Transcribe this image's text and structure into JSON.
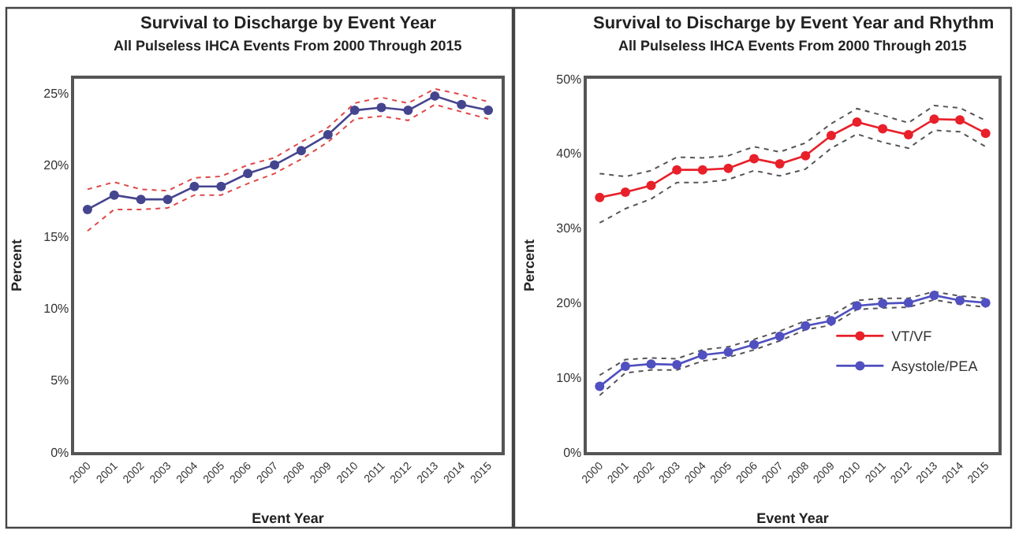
{
  "chart_data": [
    {
      "type": "line",
      "title": "Survival to Discharge by Event Year",
      "subtitle": "All Pulseless IHCA Events From 2000 Through 2015",
      "xlabel": "Event Year",
      "ylabel": "Percent",
      "categories": [
        "2000",
        "2001",
        "2002",
        "2003",
        "2004",
        "2005",
        "2006",
        "2007",
        "2008",
        "2009",
        "2010",
        "2011",
        "2012",
        "2013",
        "2014",
        "2015"
      ],
      "series": [
        {
          "color": "#e04848",
          "line_style": "dotted",
          "marker": "none",
          "values": [
            15.4,
            16.9,
            16.9,
            17.0,
            17.9,
            17.9,
            18.7,
            19.4,
            20.4,
            21.6,
            23.2,
            23.4,
            23.1,
            24.2,
            23.7,
            23.2
          ]
        },
        {
          "color": "#e04848",
          "line_style": "dotted",
          "marker": "none",
          "values": [
            18.3,
            18.8,
            18.3,
            18.2,
            19.1,
            19.2,
            20.0,
            20.5,
            21.6,
            22.6,
            24.3,
            24.7,
            24.3,
            25.3,
            24.9,
            24.4
          ]
        },
        {
          "color": "#45458f",
          "values": [
            16.9,
            17.9,
            17.6,
            17.6,
            18.5,
            18.5,
            19.4,
            20.0,
            21.0,
            22.1,
            23.8,
            24.0,
            23.8,
            24.8,
            24.2,
            23.8
          ]
        }
      ],
      "ylim": [
        0,
        26
      ],
      "yticks": [
        {
          "value": 0,
          "label": "0%"
        },
        {
          "value": 5,
          "label": "5%"
        },
        {
          "value": 10,
          "label": "10%"
        },
        {
          "value": 15,
          "label": "15%"
        },
        {
          "value": 20,
          "label": "20%"
        },
        {
          "value": 25,
          "label": "25%"
        }
      ],
      "marker": "circle",
      "line_style": "solid",
      "legend": false
    },
    {
      "type": "line",
      "title": "Survival to Discharge by Event Year and Rhythm",
      "subtitle": "All Pulseless IHCA Events From 2000 Through 2015",
      "xlabel": "Event Year",
      "ylabel": "Percent",
      "categories": [
        "2000",
        "2001",
        "2002",
        "2003",
        "2004",
        "2005",
        "2006",
        "2007",
        "2008",
        "2009",
        "2010",
        "2011",
        "2012",
        "2013",
        "2014",
        "2015"
      ],
      "series": [
        {
          "color": "#555555",
          "line_style": "dotted",
          "marker": "none",
          "values": [
            30.7,
            32.6,
            33.9,
            36.1,
            36.1,
            36.5,
            37.7,
            37.0,
            37.9,
            40.7,
            42.6,
            41.5,
            40.7,
            43.1,
            42.9,
            40.9
          ]
        },
        {
          "color": "#555555",
          "line_style": "dotted",
          "marker": "none",
          "values": [
            37.3,
            36.9,
            37.7,
            39.5,
            39.4,
            39.7,
            40.9,
            40.2,
            41.4,
            44.0,
            46.0,
            45.1,
            44.1,
            46.4,
            46.1,
            44.4
          ]
        },
        {
          "color": "#555555",
          "line_style": "dotted",
          "marker": "none",
          "values": [
            7.6,
            10.6,
            11.0,
            11.0,
            12.2,
            12.7,
            13.7,
            14.9,
            16.4,
            17.0,
            19.1,
            19.3,
            19.4,
            20.4,
            19.8,
            19.4
          ]
        },
        {
          "color": "#555555",
          "line_style": "dotted",
          "marker": "none",
          "values": [
            10.3,
            12.4,
            12.6,
            12.5,
            13.7,
            14.1,
            15.1,
            16.2,
            17.6,
            18.3,
            20.3,
            20.6,
            20.6,
            21.5,
            20.9,
            20.6
          ]
        },
        {
          "name": "VT/VF",
          "color": "#e8202a",
          "values": [
            34.1,
            34.8,
            35.7,
            37.8,
            37.8,
            38.0,
            39.3,
            38.6,
            39.7,
            42.4,
            44.2,
            43.3,
            42.5,
            44.6,
            44.5,
            42.7
          ]
        },
        {
          "name": "Asystole/PEA",
          "color": "#5050c0",
          "values": [
            8.8,
            11.5,
            11.8,
            11.7,
            13.0,
            13.4,
            14.4,
            15.5,
            16.9,
            17.6,
            19.6,
            19.9,
            20.0,
            21.0,
            20.3,
            20.0
          ]
        }
      ],
      "ylim": [
        0,
        50
      ],
      "yticks": [
        {
          "value": 0,
          "label": "0%"
        },
        {
          "value": 10,
          "label": "10%"
        },
        {
          "value": 20,
          "label": "20%"
        },
        {
          "value": 30,
          "label": "30%"
        },
        {
          "value": 40,
          "label": "40%"
        },
        {
          "value": 50,
          "label": "50%"
        }
      ],
      "marker": "circle",
      "line_style": "solid",
      "legend": "bottom right"
    }
  ]
}
